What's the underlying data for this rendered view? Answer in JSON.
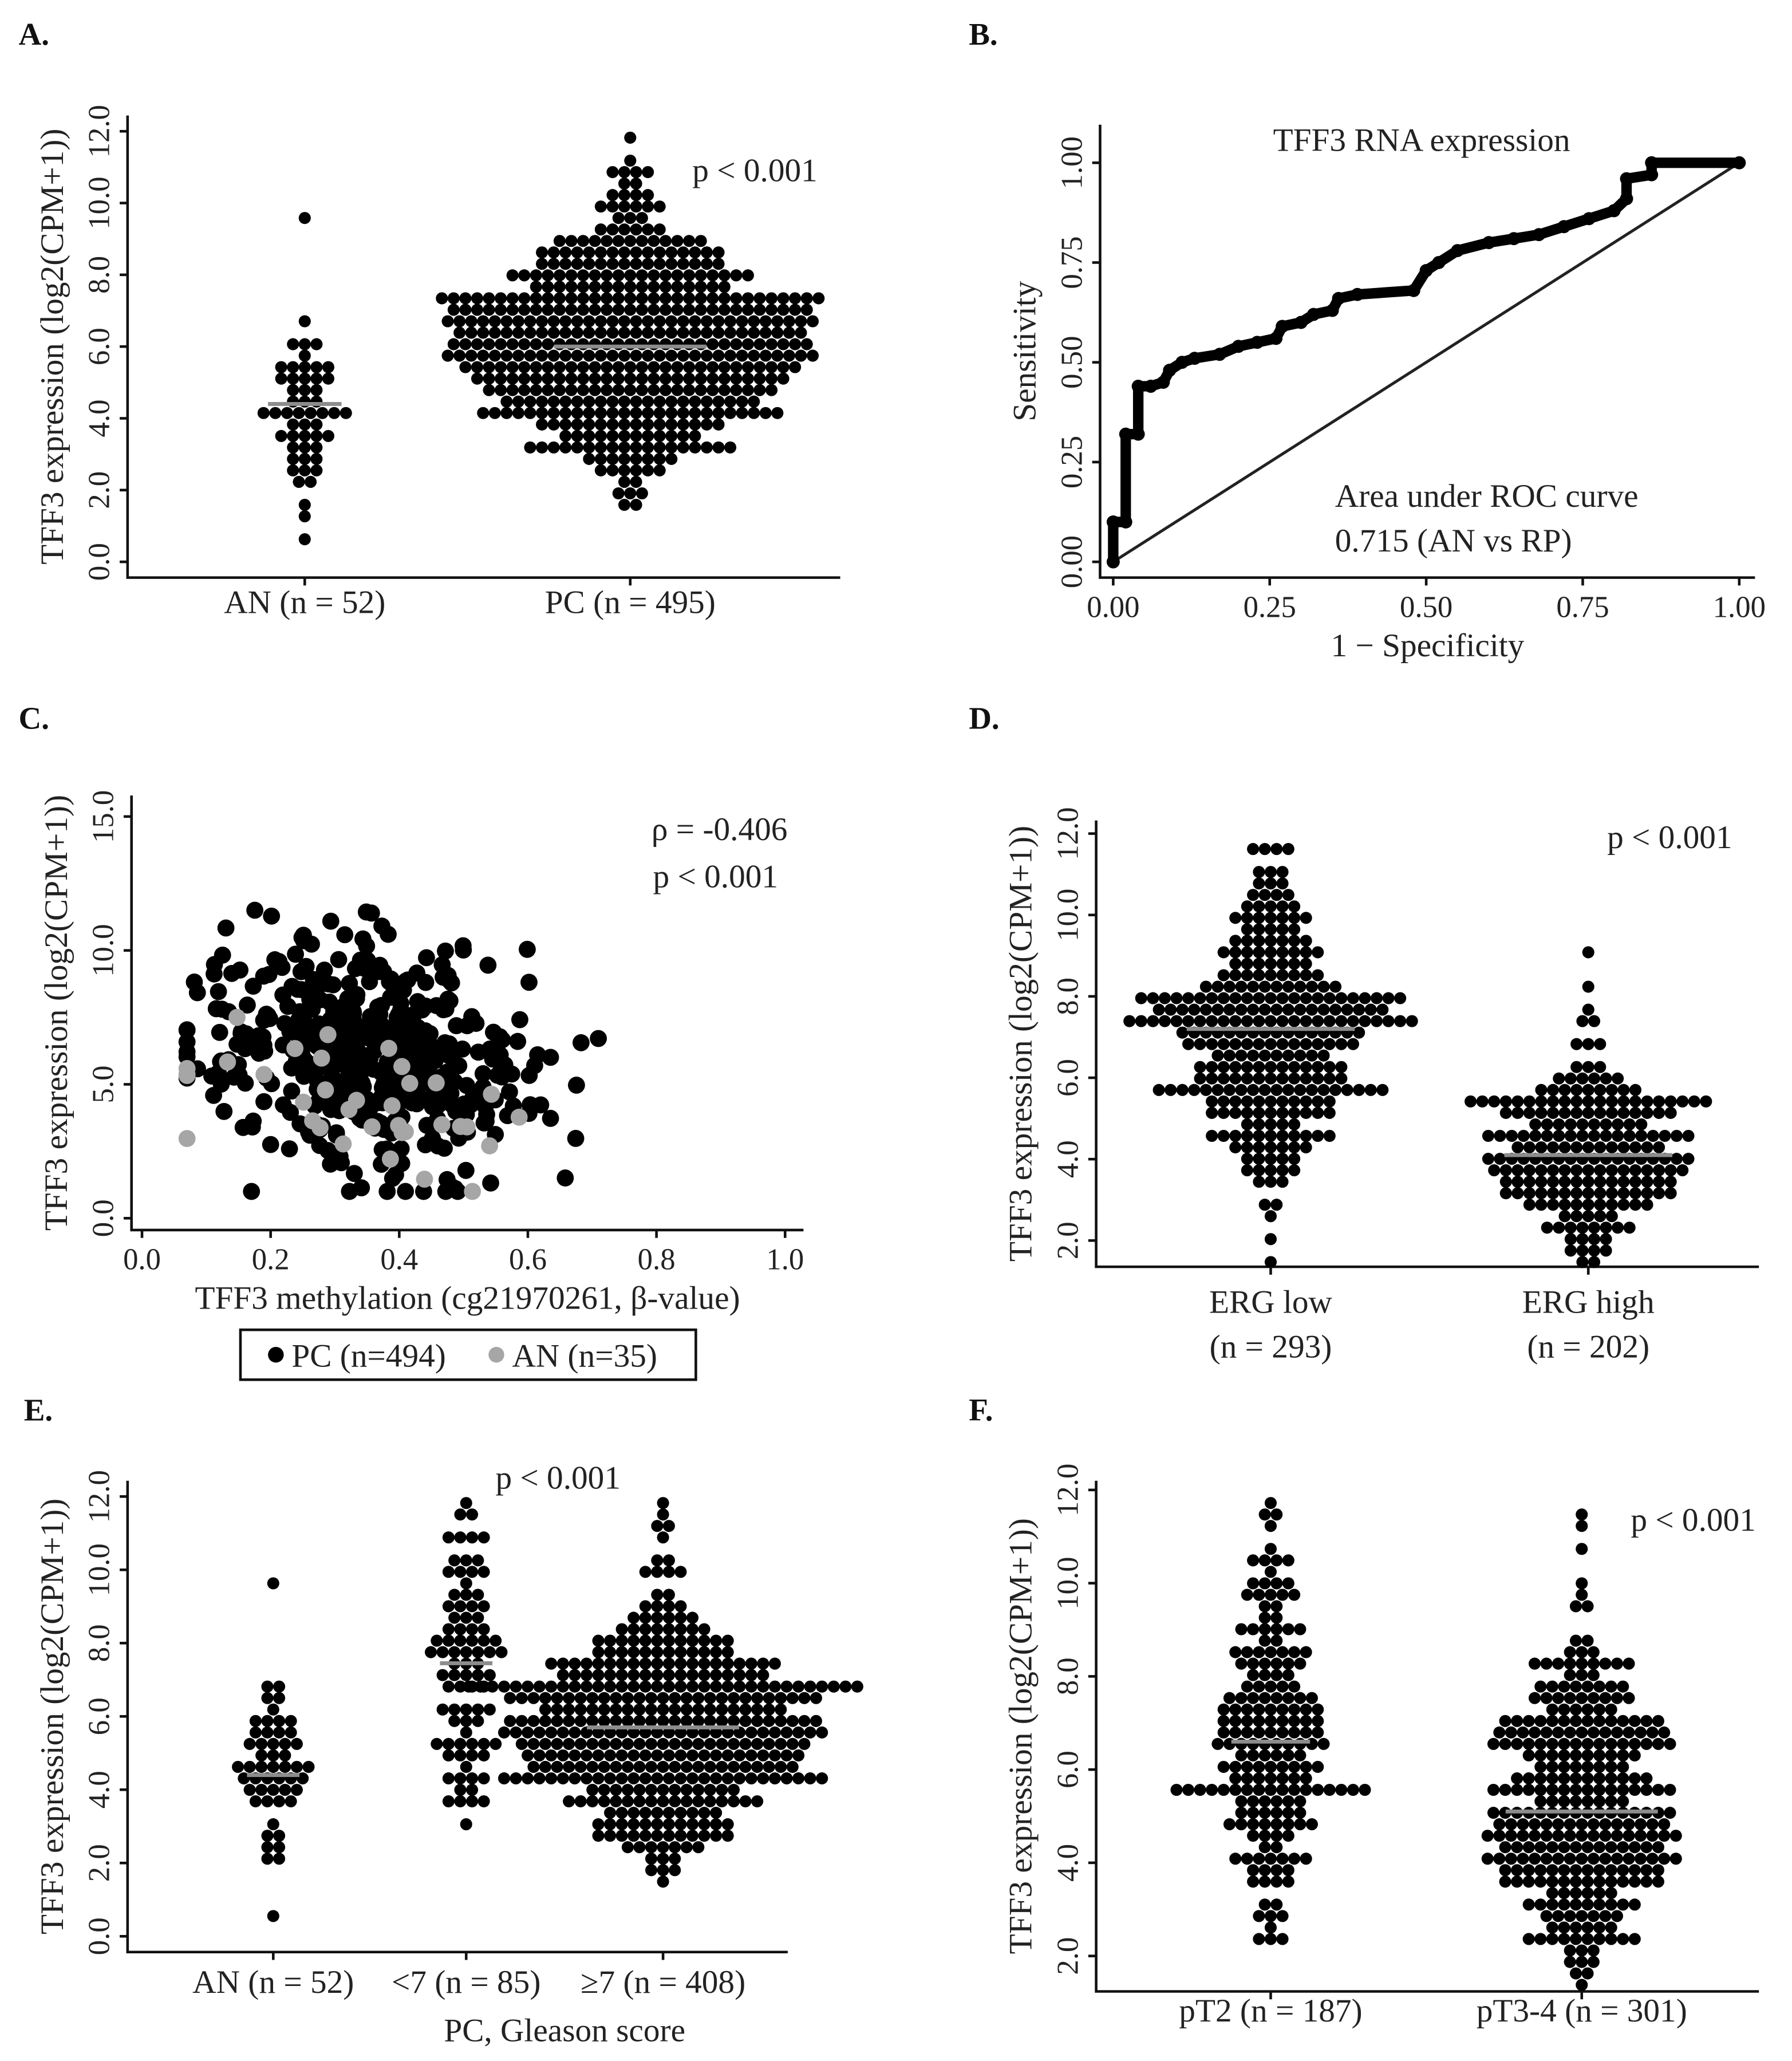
{
  "panels": [
    "A.",
    "B.",
    "C.",
    "D.",
    "E.",
    "F."
  ],
  "chart_data": [
    {
      "panel": "A",
      "type": "beeswarm",
      "ylabel": "TFF3 expression (log2(CPM+1))",
      "ylim": [
        0,
        12
      ],
      "yticks": [
        "0.0",
        "2.0",
        "4.0",
        "6.0",
        "8.0",
        "10.0",
        "12.0"
      ],
      "annotation": [
        "p < 0.001"
      ],
      "xlabel": "",
      "groups": [
        {
          "label": [
            "AN (n = 52)"
          ],
          "n": 52,
          "median": 4.4,
          "min": 0.7,
          "max": 9.6,
          "sd": 1.4
        },
        {
          "label": [
            "PC (n = 495)"
          ],
          "n": 495,
          "median": 6.0,
          "min": 1.6,
          "max": 11.8,
          "sd": 2.0
        }
      ],
      "dot_color": "#000000",
      "median_color": "#8c8c8c"
    },
    {
      "panel": "B",
      "type": "line",
      "title": "TFF3 RNA expression",
      "xlabel": "1 − Specificity",
      "ylabel": "Sensitivity",
      "xlim": [
        0,
        1
      ],
      "ylim": [
        0,
        1
      ],
      "xticks": [
        "0.00",
        "0.25",
        "0.50",
        "0.75",
        "1.00"
      ],
      "yticks": [
        "0.00",
        "0.25",
        "0.50",
        "0.75",
        "1.00"
      ],
      "annotation": [
        "Area under ROC curve",
        "0.715 (AN vs RP)"
      ],
      "auc": 0.715,
      "roc": [
        [
          0,
          0
        ],
        [
          0,
          0.1
        ],
        [
          0.02,
          0.1
        ],
        [
          0.02,
          0.32
        ],
        [
          0.04,
          0.32
        ],
        [
          0.04,
          0.44
        ],
        [
          0.06,
          0.44
        ],
        [
          0.08,
          0.45
        ],
        [
          0.09,
          0.48
        ],
        [
          0.11,
          0.5
        ],
        [
          0.13,
          0.51
        ],
        [
          0.17,
          0.52
        ],
        [
          0.2,
          0.54
        ],
        [
          0.23,
          0.55
        ],
        [
          0.26,
          0.56
        ],
        [
          0.27,
          0.59
        ],
        [
          0.3,
          0.6
        ],
        [
          0.32,
          0.62
        ],
        [
          0.35,
          0.63
        ],
        [
          0.36,
          0.66
        ],
        [
          0.39,
          0.67
        ],
        [
          0.48,
          0.68
        ],
        [
          0.5,
          0.73
        ],
        [
          0.52,
          0.75
        ],
        [
          0.55,
          0.78
        ],
        [
          0.6,
          0.8
        ],
        [
          0.64,
          0.81
        ],
        [
          0.68,
          0.82
        ],
        [
          0.72,
          0.84
        ],
        [
          0.76,
          0.86
        ],
        [
          0.8,
          0.88
        ],
        [
          0.82,
          0.91
        ],
        [
          0.82,
          0.96
        ],
        [
          0.86,
          0.97
        ],
        [
          0.86,
          1
        ],
        [
          1,
          1
        ]
      ],
      "reference_line": [
        [
          0,
          0
        ],
        [
          1,
          1
        ]
      ]
    },
    {
      "panel": "C",
      "type": "scatter",
      "xlabel": "TFF3 methylation (cg21970261, β-value)",
      "ylabel": "TFF3 expression (log2(CPM+1))",
      "xlim": [
        0,
        1
      ],
      "ylim": [
        0,
        15
      ],
      "xticks": [
        "0.0",
        "0.2",
        "0.4",
        "0.6",
        "0.8",
        "1.0"
      ],
      "yticks": [
        "0.0",
        "5.0",
        "10.0",
        "15.0"
      ],
      "annotation": [
        "ρ = -0.406",
        "p < 0.001"
      ],
      "rho": -0.406,
      "series": [
        {
          "name": "PC (n=494)",
          "n": 494,
          "color": "#000000",
          "x_mean": 0.36,
          "x_sd": 0.12,
          "y_mean": 5.9,
          "y_sd": 2.2
        },
        {
          "name": "AN (n=35)",
          "n": 35,
          "color": "#a6a6a6",
          "x_mean": 0.38,
          "x_sd": 0.16,
          "y_mean": 4.2,
          "y_sd": 1.5
        }
      ],
      "legend": {
        "position": "bottom",
        "items": [
          "PC (n=494)",
          "AN (n=35)"
        ]
      }
    },
    {
      "panel": "D",
      "type": "beeswarm",
      "ylabel": "TFF3 expression (log2(CPM+1))",
      "ylim": [
        2,
        12
      ],
      "yticks": [
        "2.0",
        "4.0",
        "6.0",
        "8.0",
        "10.0",
        "12.0"
      ],
      "annotation": [
        "p < 0.001"
      ],
      "xlabel": "",
      "groups": [
        {
          "label": [
            "ERG low",
            "(n = 293)"
          ],
          "n": 293,
          "median": 7.2,
          "min": 1.5,
          "max": 11.7,
          "sd": 1.9
        },
        {
          "label": [
            "ERG high",
            "(n = 202)"
          ],
          "n": 202,
          "median": 4.1,
          "min": 1.5,
          "max": 9.1,
          "sd": 1.3
        }
      ],
      "dot_color": "#000000",
      "median_color": "#8c8c8c"
    },
    {
      "panel": "E",
      "type": "beeswarm",
      "ylabel": "TFF3 expression (log2(CPM+1))",
      "ylim": [
        0,
        12
      ],
      "yticks": [
        "0.0",
        "2.0",
        "4.0",
        "6.0",
        "8.0",
        "10.0",
        "12.0"
      ],
      "annotation": [
        "p < 0.001"
      ],
      "xlabel": "PC, Gleason score",
      "groups": [
        {
          "label": [
            "AN (n = 52)"
          ],
          "n": 52,
          "median": 4.4,
          "min": 0.7,
          "max": 9.6,
          "sd": 1.4
        },
        {
          "label": [
            "<7 (n = 85)"
          ],
          "n": 85,
          "median": 7.45,
          "min": 3.2,
          "max": 11.8,
          "sd": 2.2
        },
        {
          "label": [
            "≥7 (n = 408)"
          ],
          "n": 408,
          "median": 5.7,
          "min": 1.6,
          "max": 11.8,
          "sd": 2.0
        }
      ],
      "dot_color": "#000000",
      "median_color": "#8c8c8c"
    },
    {
      "panel": "F",
      "type": "beeswarm",
      "ylabel": "TFF3 expression (log2(CPM+1))",
      "ylim": [
        2,
        12
      ],
      "yticks": [
        "2.0",
        "4.0",
        "6.0",
        "8.0",
        "10.0",
        "12.0"
      ],
      "annotation": [
        "p < 0.001"
      ],
      "xlabel": "",
      "groups": [
        {
          "label": [
            "pT2 (n = 187)"
          ],
          "n": 187,
          "median": 6.6,
          "min": 2.3,
          "max": 11.7,
          "sd": 2.1
        },
        {
          "label": [
            "pT3-4 (n = 301)"
          ],
          "n": 301,
          "median": 5.1,
          "min": 1.5,
          "max": 11.4,
          "sd": 2.0
        }
      ],
      "dot_color": "#000000",
      "median_color": "#8c8c8c"
    }
  ]
}
